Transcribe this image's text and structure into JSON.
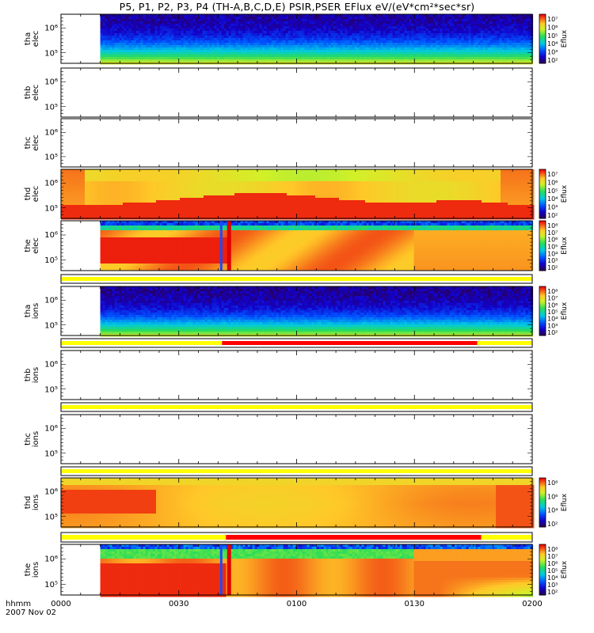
{
  "title": "P5, P1, P2, P3, P4 (TH-A,B,C,D,E) PSIR,PSER EFlux eV/(eV*cm²*sec*sr)",
  "colorbar_title": "Eflux",
  "time_axis": {
    "row_label": "hhmm",
    "date_label": "2007 Nov 02",
    "ticks": [
      "0000",
      "0030",
      "0100",
      "0130",
      "0200"
    ]
  },
  "chart_data": {
    "type": "heatmap",
    "x_start": "0000",
    "x_end": "0200",
    "y_scale": "log",
    "panels": [
      {
        "id": "tha_elec",
        "kind": "spec",
        "label1": "tha",
        "label2": "elec",
        "yticks": [
          "10⁶",
          "10⁵"
        ],
        "pattern": "tha_elec",
        "colorbar": [
          "10⁷",
          "10⁶",
          "10⁵",
          "10⁴",
          "10³",
          "10²"
        ],
        "gap_end_min": 10
      },
      {
        "id": "thb_elec",
        "kind": "spec",
        "label1": "thb",
        "label2": "elec",
        "yticks": [
          "10⁶",
          "10⁵"
        ],
        "pattern": "empty",
        "colorbar": []
      },
      {
        "id": "thc_elec",
        "kind": "spec",
        "label1": "thc",
        "label2": "elec",
        "yticks": [
          "10⁶",
          "10⁵"
        ],
        "pattern": "empty",
        "colorbar": []
      },
      {
        "id": "thd_elec",
        "kind": "spec",
        "label1": "thd",
        "label2": "elec",
        "yticks": [
          "10⁶",
          "10⁵"
        ],
        "pattern": "thd_elec",
        "colorbar": [
          "10⁷",
          "10⁶",
          "10⁵",
          "10⁴",
          "10³",
          "10²"
        ]
      },
      {
        "id": "the_elec",
        "kind": "spec",
        "label1": "the",
        "label2": "elec",
        "yticks": [
          "10⁶",
          "10⁵"
        ],
        "pattern": "the_elec",
        "colorbar": [
          "10⁸",
          "10⁷",
          "10⁶",
          "10⁵",
          "10⁴",
          "10³",
          "10²"
        ],
        "gap_end_min": 10
      },
      {
        "id": "mode_a",
        "kind": "bar",
        "segments": [
          {
            "from": 0,
            "to": 120,
            "mode": "fast"
          }
        ]
      },
      {
        "id": "tha_ions",
        "kind": "spec",
        "label1": "tha",
        "label2": "ions",
        "yticks": [
          "10⁶",
          "10⁵"
        ],
        "pattern": "tha_ions",
        "colorbar": [
          "10⁸",
          "10⁷",
          "10⁶",
          "10⁵",
          "10⁴",
          "10³",
          "10²"
        ],
        "gap_end_min": 10
      },
      {
        "id": "mode_b",
        "kind": "bar",
        "segments": [
          {
            "from": 0,
            "to": 41,
            "mode": "fast"
          },
          {
            "from": 41,
            "to": 106,
            "mode": "slow"
          },
          {
            "from": 106,
            "to": 120,
            "mode": "fast"
          }
        ]
      },
      {
        "id": "thb_ions",
        "kind": "spec",
        "label1": "thb",
        "label2": "ions",
        "yticks": [
          "10⁶",
          "10⁵"
        ],
        "pattern": "empty",
        "colorbar": []
      },
      {
        "id": "mode_c",
        "kind": "bar",
        "segments": [
          {
            "from": 0,
            "to": 120,
            "mode": "fast"
          }
        ]
      },
      {
        "id": "thc_ions",
        "kind": "spec",
        "label1": "thc",
        "label2": "ions",
        "yticks": [
          "10⁶",
          "10⁵"
        ],
        "pattern": "empty",
        "colorbar": []
      },
      {
        "id": "mode_d",
        "kind": "bar",
        "segments": [
          {
            "from": 0,
            "to": 120,
            "mode": "fast"
          }
        ]
      },
      {
        "id": "thd_ions",
        "kind": "spec",
        "label1": "thd",
        "label2": "ions",
        "yticks": [
          "10⁶",
          "10⁵"
        ],
        "pattern": "thd_ions",
        "colorbar": [
          "10⁸",
          "10⁶",
          "10⁴",
          "10²"
        ]
      },
      {
        "id": "mode_e",
        "kind": "bar",
        "segments": [
          {
            "from": 0,
            "to": 42,
            "mode": "fast"
          },
          {
            "from": 42,
            "to": 107,
            "mode": "slow"
          },
          {
            "from": 107,
            "to": 120,
            "mode": "fast"
          }
        ]
      },
      {
        "id": "the_ions",
        "kind": "spec",
        "label1": "the",
        "label2": "ions",
        "yticks": [
          "10⁶",
          "10⁵"
        ],
        "pattern": "the_ions",
        "colorbar": [
          "10⁸",
          "10⁷",
          "10⁶",
          "10⁵",
          "10⁴",
          "10³",
          "10²"
        ],
        "gap_end_min": 10
      }
    ]
  },
  "colors": {
    "fast_mode": "#ffff00",
    "slow_mode": "#ff0000"
  }
}
